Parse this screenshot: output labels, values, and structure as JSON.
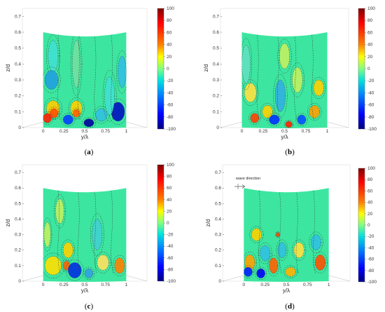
{
  "colorbar": {
    "ticks": [
      "100",
      "80",
      "60",
      "40",
      "20",
      "0",
      "-20",
      "-40",
      "-60",
      "-80",
      "-100"
    ],
    "colors": [
      "#7f0000",
      "#ff0000",
      "#ff8000",
      "#ffff00",
      "#80ff80",
      "#00c0c0",
      "#0080ff",
      "#0000ff",
      "#00007f"
    ]
  },
  "panels": [
    {
      "caption_open": "(",
      "caption_letter": "a",
      "caption_close": ")",
      "annotation": ""
    },
    {
      "caption_open": "(",
      "caption_letter": "b",
      "caption_close": ")",
      "annotation": ""
    },
    {
      "caption_open": "(",
      "caption_letter": "c",
      "caption_close": ")",
      "annotation": ""
    },
    {
      "caption_open": "(",
      "caption_letter": "d",
      "caption_close": ")",
      "annotation": "wave direction"
    }
  ],
  "chart_data": [
    {
      "type": "heatmap",
      "panel": "a",
      "xlabel": "y/λ",
      "ylabel": "z/d",
      "x_ticks": [
        "0",
        "0.25",
        "0.5",
        "0.75",
        "1"
      ],
      "y_ticks": [
        "0",
        "0.1",
        "0.2",
        "0.3",
        "0.4",
        "0.5",
        "0.6",
        "0.7"
      ],
      "xlim": [
        -0.25,
        1.25
      ],
      "ylim": [
        0,
        0.75
      ],
      "color_range": [
        -100,
        100
      ]
    },
    {
      "type": "heatmap",
      "panel": "b",
      "xlabel": "y/λ",
      "ylabel": "z/d",
      "x_ticks": [
        "0",
        "0.25",
        "0.5",
        "0.75",
        "1"
      ],
      "y_ticks": [
        "0",
        "0.1",
        "0.2",
        "0.3",
        "0.4",
        "0.5",
        "0.6",
        "0.7"
      ],
      "xlim": [
        -0.25,
        1.25
      ],
      "ylim": [
        0,
        0.75
      ],
      "color_range": [
        -100,
        100
      ]
    },
    {
      "type": "heatmap",
      "panel": "c",
      "xlabel": "y/λ",
      "ylabel": "z/d",
      "x_ticks": [
        "0",
        "0.25",
        "0.5",
        "0.75",
        "1"
      ],
      "y_ticks": [
        "0",
        "0.1",
        "0.2",
        "0.3",
        "0.4",
        "0.5",
        "0.6",
        "0.7"
      ],
      "xlim": [
        -0.25,
        1.25
      ],
      "ylim": [
        0,
        0.75
      ],
      "color_range": [
        -100,
        100
      ]
    },
    {
      "type": "heatmap",
      "panel": "d",
      "xlabel": "y/λ",
      "ylabel": "z/d",
      "x_ticks": [
        "0",
        "0.25",
        "0.5",
        "0.75",
        "1"
      ],
      "y_ticks": [
        "0",
        "0.1",
        "0.2",
        "0.3",
        "0.4",
        "0.5",
        "0.6",
        "0.7"
      ],
      "xlim": [
        -0.25,
        1.25
      ],
      "ylim": [
        0,
        0.75
      ],
      "color_range": [
        -100,
        100
      ]
    }
  ]
}
